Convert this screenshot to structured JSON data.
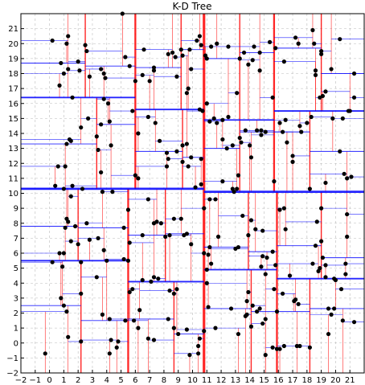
{
  "chart_data": {
    "type": "scatter",
    "title": "K-D Tree",
    "xlabel": "",
    "ylabel": "",
    "xlim": [
      -2,
      22
    ],
    "ylim": [
      -2,
      22
    ],
    "xticks": [
      -2,
      -1,
      0,
      1,
      2,
      3,
      4,
      5,
      6,
      7,
      8,
      9,
      10,
      11,
      12,
      13,
      14,
      15,
      16,
      17,
      18,
      19,
      20,
      21
    ],
    "yticks": [
      -2,
      -1,
      0,
      1,
      2,
      3,
      4,
      5,
      6,
      7,
      8,
      9,
      10,
      11,
      12,
      13,
      14,
      15,
      16,
      17,
      18,
      19,
      20,
      21
    ],
    "grid": true,
    "colors": {
      "point": "#000000",
      "vertical_split": "#ff0000",
      "horizontal_split": "#0000ff",
      "grid": "#bbbbbb"
    },
    "points": [
      [
        0.2,
        20.2
      ],
      [
        1.3,
        20.5
      ],
      [
        1.2,
        20.0
      ],
      [
        2.5,
        19.9
      ],
      [
        2.6,
        19.5
      ],
      [
        0.8,
        18.7
      ],
      [
        1.0,
        18.0
      ],
      [
        1.3,
        18.3
      ],
      [
        2.0,
        18.8
      ],
      [
        0.7,
        17.2
      ],
      [
        2.1,
        18.2
      ],
      [
        2.8,
        17.8
      ],
      [
        3.6,
        18.3
      ],
      [
        3.8,
        18.0
      ],
      [
        3.9,
        17.7
      ],
      [
        2.2,
        14.4
      ],
      [
        1.6,
        16.4
      ],
      [
        2.7,
        15.0
      ],
      [
        3.3,
        13.8
      ],
      [
        3.4,
        12.9
      ],
      [
        3.6,
        14.6
      ],
      [
        3.6,
        11.4
      ],
      [
        1.2,
        13.3
      ],
      [
        1.4,
        13.6
      ],
      [
        1.5,
        13.5
      ],
      [
        4.1,
        16.0
      ],
      [
        4.2,
        14.8
      ],
      [
        3.8,
        16.3
      ],
      [
        4.3,
        13.2
      ],
      [
        0.6,
        11.8
      ],
      [
        1.1,
        11.8
      ],
      [
        0.4,
        10.5
      ],
      [
        1.6,
        10.5
      ],
      [
        1.5,
        9.8
      ],
      [
        2.3,
        10.3
      ],
      [
        3.7,
        10.1
      ],
      [
        4.4,
        10.1
      ],
      [
        1.0,
        10.3
      ],
      [
        1.2,
        8.3
      ],
      [
        1.3,
        8.1
      ],
      [
        1.8,
        7.8
      ],
      [
        1.1,
        7.7
      ],
      [
        1.0,
        6.0
      ],
      [
        1.5,
        6.8
      ],
      [
        2.0,
        6.6
      ],
      [
        2.8,
        6.9
      ],
      [
        3.4,
        7.0
      ],
      [
        2.6,
        8.0
      ],
      [
        3.8,
        6.2
      ],
      [
        0.2,
        5.4
      ],
      [
        0.7,
        6.0
      ],
      [
        0.9,
        5.1
      ],
      [
        2.2,
        5.4
      ],
      [
        3.3,
        4.4
      ],
      [
        4.0,
        5.5
      ],
      [
        0.8,
        3.0
      ],
      [
        1.0,
        2.5
      ],
      [
        1.2,
        2.1
      ],
      [
        1.3,
        0.4
      ],
      [
        2.2,
        3.3
      ],
      [
        2.2,
        0.1
      ],
      [
        3.7,
        1.9
      ],
      [
        4.2,
        1.6
      ],
      [
        4.3,
        0.2
      ],
      [
        4.2,
        -0.7
      ],
      [
        -0.3,
        -0.7
      ],
      [
        5.1,
        22.0
      ],
      [
        5.3,
        19.1
      ],
      [
        5.6,
        18.5
      ],
      [
        6.0,
        17.5
      ],
      [
        6.6,
        19.6
      ],
      [
        6.5,
        17.9
      ],
      [
        7.0,
        17.5
      ],
      [
        7.3,
        18.2
      ],
      [
        7.3,
        18.4
      ],
      [
        8.3,
        19.3
      ],
      [
        8.6,
        19.4
      ],
      [
        8.8,
        19.1
      ],
      [
        9.2,
        19.6
      ],
      [
        8.9,
        17.8
      ],
      [
        9.3,
        19.2
      ],
      [
        9.8,
        19.6
      ],
      [
        9.9,
        18.3
      ],
      [
        9.6,
        16.7
      ],
      [
        9.7,
        17.0
      ],
      [
        5.8,
        15.5
      ],
      [
        6.2,
        14.0
      ],
      [
        6.9,
        15.1
      ],
      [
        7.4,
        14.7
      ],
      [
        7.7,
        13.5
      ],
      [
        8.2,
        12.7
      ],
      [
        8.3,
        12.3
      ],
      [
        8.9,
        12.8
      ],
      [
        9.3,
        13.2
      ],
      [
        9.6,
        13.3
      ],
      [
        9.3,
        12.1
      ],
      [
        9.7,
        11.8
      ],
      [
        9.9,
        12.4
      ],
      [
        6.0,
        11.2
      ],
      [
        6.2,
        11.0
      ],
      [
        8.2,
        11.8
      ],
      [
        5.5,
        8.9
      ],
      [
        5.2,
        7.7
      ],
      [
        5.6,
        6.7
      ],
      [
        6.5,
        7.2
      ],
      [
        6.9,
        9.6
      ],
      [
        7.3,
        8.0
      ],
      [
        7.5,
        8.1
      ],
      [
        7.8,
        8.0
      ],
      [
        8.1,
        7.1
      ],
      [
        8.4,
        7.2
      ],
      [
        8.7,
        8.3
      ],
      [
        9.2,
        8.3
      ],
      [
        9.4,
        7.2
      ],
      [
        9.6,
        7.3
      ],
      [
        9.9,
        6.6
      ],
      [
        5.2,
        5.6
      ],
      [
        5.5,
        5.5
      ],
      [
        5.6,
        3.4
      ],
      [
        5.8,
        3.6
      ],
      [
        6.5,
        4.2
      ],
      [
        7.1,
        4.1
      ],
      [
        7.3,
        4.4
      ],
      [
        7.6,
        4.3
      ],
      [
        8.4,
        3.5
      ],
      [
        8.7,
        3.3
      ],
      [
        8.9,
        3.6
      ],
      [
        5.3,
        1.5
      ],
      [
        5.9,
        1.5
      ],
      [
        6.3,
        2.2
      ],
      [
        6.2,
        1.0
      ],
      [
        6.9,
        0.3
      ],
      [
        7.3,
        0.2
      ],
      [
        8.3,
        1.6
      ],
      [
        8.7,
        1.0
      ],
      [
        9.0,
        0.6
      ],
      [
        9.6,
        0.9
      ],
      [
        9.8,
        -0.8
      ],
      [
        4.8,
        0.1
      ],
      [
        4.7,
        -0.3
      ],
      [
        10.3,
        20.2
      ],
      [
        10.5,
        20.5
      ],
      [
        10.6,
        19.9
      ],
      [
        10.9,
        19.2
      ],
      [
        11.3,
        19.8
      ],
      [
        11.0,
        19.0
      ],
      [
        11.7,
        20.0
      ],
      [
        12.5,
        19.8
      ],
      [
        13.3,
        19.0
      ],
      [
        13.6,
        19.4
      ],
      [
        13.9,
        18.6
      ],
      [
        14.2,
        18.9
      ],
      [
        14.7,
        19.4
      ],
      [
        14.7,
        18.2
      ],
      [
        14.3,
        19.8
      ],
      [
        13.1,
        16.7
      ],
      [
        11.0,
        16.0
      ],
      [
        10.5,
        15.6
      ],
      [
        10.7,
        15.5
      ],
      [
        11.2,
        14.8
      ],
      [
        11.5,
        15.0
      ],
      [
        11.7,
        14.7
      ],
      [
        12.1,
        14.9
      ],
      [
        12.5,
        15.1
      ],
      [
        12.1,
        13.6
      ],
      [
        12.4,
        13.0
      ],
      [
        12.8,
        13.2
      ],
      [
        13.3,
        13.7
      ],
      [
        13.7,
        14.2
      ],
      [
        14.5,
        14.2
      ],
      [
        14.8,
        14.2
      ],
      [
        14.8,
        13.9
      ],
      [
        15.1,
        14.1
      ],
      [
        13.4,
        13.4
      ],
      [
        14.0,
        13.2
      ],
      [
        14.1,
        12.4
      ],
      [
        10.6,
        12.3
      ],
      [
        12.1,
        10.8
      ],
      [
        13.2,
        11.2
      ],
      [
        10.2,
        10.4
      ],
      [
        10.6,
        10.6
      ],
      [
        10.8,
        9.0
      ],
      [
        11.2,
        9.6
      ],
      [
        11.6,
        9.6
      ],
      [
        12.9,
        10.1
      ],
      [
        12.8,
        10.3
      ],
      [
        13.1,
        10.3
      ],
      [
        13.5,
        8.5
      ],
      [
        14.1,
        8.2
      ],
      [
        14.4,
        7.6
      ],
      [
        14.9,
        7.5
      ],
      [
        13.9,
        7.2
      ],
      [
        11.8,
        7.1
      ],
      [
        11.2,
        6.4
      ],
      [
        10.8,
        6.0
      ],
      [
        11.1,
        5.9
      ],
      [
        11.3,
        5.3
      ],
      [
        11.0,
        4.9
      ],
      [
        11.0,
        4.0
      ],
      [
        13.0,
        6.3
      ],
      [
        13.2,
        6.4
      ],
      [
        14.9,
        5.8
      ],
      [
        15.2,
        5.7
      ],
      [
        14.8,
        5.1
      ],
      [
        15.1,
        4.6
      ],
      [
        15.7,
        3.6
      ],
      [
        16.3,
        3.3
      ],
      [
        13.9,
        3.4
      ],
      [
        13.8,
        2.8
      ],
      [
        14.2,
        2.5
      ],
      [
        14.5,
        2.1
      ],
      [
        14.7,
        2.3
      ],
      [
        13.7,
        1.8
      ],
      [
        13.8,
        1.9
      ],
      [
        12.7,
        2.3
      ],
      [
        11.1,
        2.4
      ],
      [
        11.6,
        1.0
      ],
      [
        10.8,
        0.8
      ],
      [
        10.5,
        0.3
      ],
      [
        10.4,
        -0.2
      ],
      [
        10.4,
        -0.7
      ],
      [
        14.1,
        1.1
      ],
      [
        14.9,
        1.3
      ],
      [
        15.1,
        -0.8
      ],
      [
        13.2,
        0.6
      ],
      [
        15.6,
        -0.3
      ],
      [
        15.9,
        -0.4
      ],
      [
        16.1,
        -0.4
      ],
      [
        16.4,
        -0.2
      ],
      [
        17.3,
        -0.2
      ],
      [
        17.5,
        -0.2
      ],
      [
        18.2,
        -0.3
      ],
      [
        15.4,
        20.1
      ],
      [
        15.8,
        19.7
      ],
      [
        16.4,
        18.8
      ],
      [
        17.2,
        20.4
      ],
      [
        17.4,
        20.0
      ],
      [
        18.4,
        20.9
      ],
      [
        18.5,
        20.0
      ],
      [
        19.0,
        19.5
      ],
      [
        19.0,
        19.3
      ],
      [
        19.7,
        18.3
      ],
      [
        20.3,
        20.3
      ],
      [
        21.3,
        18.0
      ],
      [
        18.6,
        17.9
      ],
      [
        18.6,
        18.2
      ],
      [
        15.6,
        16.4
      ],
      [
        16.1,
        14.7
      ],
      [
        16.5,
        14.9
      ],
      [
        16.3,
        14.1
      ],
      [
        16.6,
        13.4
      ],
      [
        17.0,
        12.5
      ],
      [
        17.0,
        12.1
      ],
      [
        17.5,
        14.5
      ],
      [
        17.6,
        14.1
      ],
      [
        18.0,
        14.7
      ],
      [
        18.3,
        15.1
      ],
      [
        18.9,
        16.4
      ],
      [
        19.3,
        16.8
      ],
      [
        19.1,
        16.5
      ],
      [
        19.8,
        15.0
      ],
      [
        20.5,
        15.0
      ],
      [
        20.9,
        15.5
      ],
      [
        21.0,
        15.5
      ],
      [
        21.3,
        16.4
      ],
      [
        20.3,
        12.8
      ],
      [
        20.6,
        11.3
      ],
      [
        20.8,
        11.0
      ],
      [
        21.1,
        11.1
      ],
      [
        15.7,
        10.8
      ],
      [
        16.1,
        8.9
      ],
      [
        16.4,
        9.0
      ],
      [
        16.5,
        7.6
      ],
      [
        18.2,
        10.3
      ],
      [
        18.7,
        8.1
      ],
      [
        19.0,
        9.0
      ],
      [
        19.0,
        6.8
      ],
      [
        19.3,
        10.7
      ],
      [
        19.1,
        5.7
      ],
      [
        19.3,
        5.2
      ],
      [
        19.9,
        4.3
      ],
      [
        20.0,
        4.2
      ],
      [
        20.7,
        5.3
      ],
      [
        20.8,
        8.6
      ],
      [
        20.8,
        7.1
      ],
      [
        18.6,
        6.5
      ],
      [
        18.4,
        5.3
      ],
      [
        15.6,
        6.1
      ],
      [
        15.8,
        5.2
      ],
      [
        16.8,
        4.5
      ],
      [
        17.1,
        2.8
      ],
      [
        17.2,
        2.9
      ],
      [
        17.4,
        2.6
      ],
      [
        18.8,
        4.8
      ],
      [
        19.5,
        2.3
      ],
      [
        19.7,
        1.9
      ],
      [
        19.9,
        2.3
      ],
      [
        19.5,
        0.6
      ],
      [
        20.5,
        1.5
      ],
      [
        21.3,
        1.4
      ],
      [
        20.4,
        3.6
      ],
      [
        20.7,
        4.6
      ],
      [
        19.3,
        4.4
      ],
      [
        18.9,
        5.0
      ],
      [
        15.9,
        2.1
      ],
      [
        15.1,
        1.6
      ]
    ]
  }
}
